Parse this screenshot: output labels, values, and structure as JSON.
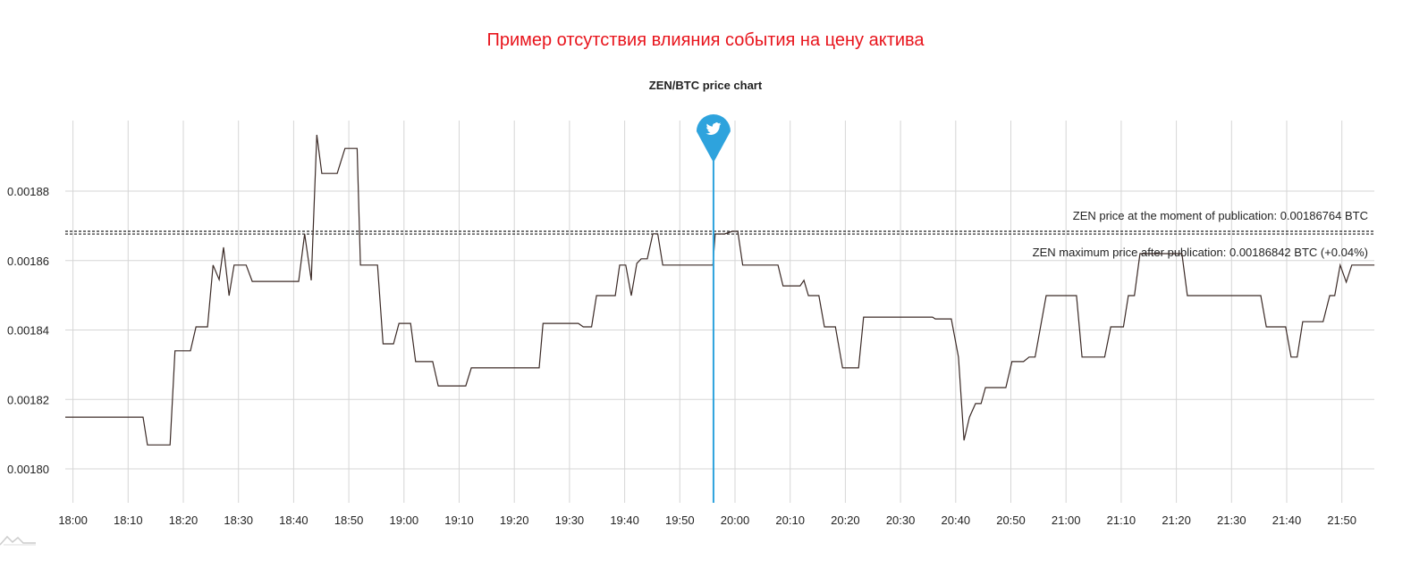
{
  "header": {
    "title": "Пример отсутствия влияния события на цену актива"
  },
  "chart_data": {
    "type": "line",
    "title": "ZEN/BTC price chart",
    "xlabel": "",
    "ylabel": "",
    "x_ticks": [
      "18:00",
      "18:10",
      "18:20",
      "18:30",
      "18:40",
      "18:50",
      "19:00",
      "19:10",
      "19:20",
      "19:30",
      "19:40",
      "19:50",
      "20:00",
      "20:10",
      "20:20",
      "20:30",
      "20:40",
      "20:50",
      "21:00",
      "21:10",
      "21:20",
      "21:30",
      "21:40",
      "21:50"
    ],
    "y_ticks": [
      "0.00180",
      "0.00182",
      "0.00184",
      "0.00186",
      "0.00188"
    ],
    "ylim": [
      0.00179,
      0.0019
    ],
    "grid": true,
    "line_color": "#3b2a26",
    "event": {
      "icon": "twitter-icon",
      "time": "19:56:06",
      "color": "#2ea3dd"
    },
    "reference_lines": [
      {
        "value": 0.00186764,
        "label": "ZEN price at the moment of publication: 0.00186764 BTC"
      },
      {
        "value": 0.00186842,
        "label": "ZEN maximum price after publication: 0.00186842 BTC (+0.04%)"
      }
    ],
    "points": [
      [
        "17:58:36",
        0.0018149
      ],
      [
        "18:12:42",
        0.0018149
      ],
      [
        "18:13:30",
        0.0018069
      ],
      [
        "18:17:36",
        0.0018069
      ],
      [
        "18:18:30",
        0.001834
      ],
      [
        "18:21:18",
        0.001834
      ],
      [
        "18:22:18",
        0.0018409
      ],
      [
        "18:24:24",
        0.0018409
      ],
      [
        "18:25:24",
        0.0018587
      ],
      [
        "18:26:30",
        0.0018545
      ],
      [
        "18:27:18",
        0.0018638
      ],
      [
        "18:28:18",
        0.0018499
      ],
      [
        "18:29:12",
        0.0018587
      ],
      [
        "18:31:24",
        0.0018587
      ],
      [
        "18:32:30",
        0.001854
      ],
      [
        "18:40:54",
        0.001854
      ],
      [
        "18:42:00",
        0.0018677
      ],
      [
        "18:43:12",
        0.0018543
      ],
      [
        "18:44:12",
        0.0018962
      ],
      [
        "18:45:06",
        0.0018851
      ],
      [
        "18:47:54",
        0.0018851
      ],
      [
        "18:49:18",
        0.0018923
      ],
      [
        "18:51:30",
        0.0018923
      ],
      [
        "18:52:06",
        0.0018587
      ],
      [
        "18:55:12",
        0.0018587
      ],
      [
        "18:56:12",
        0.001836
      ],
      [
        "18:58:06",
        0.001836
      ],
      [
        "18:59:06",
        0.0018419
      ],
      [
        "19:01:12",
        0.0018419
      ],
      [
        "19:02:06",
        0.0018309
      ],
      [
        "19:05:12",
        0.0018309
      ],
      [
        "19:06:12",
        0.0018239
      ],
      [
        "19:11:12",
        0.0018239
      ],
      [
        "19:12:12",
        0.0018291
      ],
      [
        "19:24:30",
        0.0018291
      ],
      [
        "19:25:12",
        0.0018419
      ],
      [
        "19:31:36",
        0.0018419
      ],
      [
        "19:32:30",
        0.0018409
      ],
      [
        "19:34:00",
        0.0018409
      ],
      [
        "19:34:54",
        0.0018499
      ],
      [
        "19:38:18",
        0.0018499
      ],
      [
        "19:39:06",
        0.0018587
      ],
      [
        "19:40:12",
        0.0018587
      ],
      [
        "19:41:12",
        0.0018499
      ],
      [
        "19:42:12",
        0.0018592
      ],
      [
        "19:43:00",
        0.0018605
      ],
      [
        "19:44:06",
        0.0018605
      ],
      [
        "19:45:06",
        0.0018677
      ],
      [
        "19:46:00",
        0.0018677
      ],
      [
        "19:46:54",
        0.0018587
      ],
      [
        "19:56:00",
        0.0018587
      ],
      [
        "19:56:24",
        0.00186764
      ],
      [
        "19:58:06",
        0.00186764
      ],
      [
        "19:59:30",
        0.00186842
      ],
      [
        "20:00:30",
        0.00186842
      ],
      [
        "20:01:24",
        0.0018587
      ],
      [
        "20:07:48",
        0.0018587
      ],
      [
        "20:08:42",
        0.0018527
      ],
      [
        "20:11:48",
        0.0018527
      ],
      [
        "20:12:30",
        0.0018543
      ],
      [
        "20:13:18",
        0.0018499
      ],
      [
        "20:15:12",
        0.0018499
      ],
      [
        "20:16:12",
        0.0018409
      ],
      [
        "20:18:12",
        0.0018409
      ],
      [
        "20:19:30",
        0.0018291
      ],
      [
        "20:22:24",
        0.0018291
      ],
      [
        "20:23:18",
        0.0018437
      ],
      [
        "20:35:48",
        0.0018437
      ],
      [
        "20:36:18",
        0.0018432
      ],
      [
        "20:39:12",
        0.0018432
      ],
      [
        "20:40:30",
        0.0018322
      ],
      [
        "20:41:30",
        0.0018082
      ],
      [
        "20:42:30",
        0.0018149
      ],
      [
        "20:43:36",
        0.0018188
      ],
      [
        "20:44:36",
        0.0018188
      ],
      [
        "20:45:24",
        0.0018234
      ],
      [
        "20:49:06",
        0.0018234
      ],
      [
        "20:50:12",
        0.0018309
      ],
      [
        "20:52:18",
        0.0018309
      ],
      [
        "20:53:18",
        0.0018322
      ],
      [
        "20:54:24",
        0.0018322
      ],
      [
        "20:56:24",
        0.0018499
      ],
      [
        "21:01:54",
        0.0018499
      ],
      [
        "21:02:54",
        0.0018322
      ],
      [
        "21:07:00",
        0.0018322
      ],
      [
        "21:08:06",
        0.0018409
      ],
      [
        "21:10:24",
        0.0018409
      ],
      [
        "21:11:18",
        0.0018499
      ],
      [
        "21:12:24",
        0.0018499
      ],
      [
        "21:13:24",
        0.001862
      ],
      [
        "21:21:00",
        0.001862
      ],
      [
        "21:22:00",
        0.0018499
      ],
      [
        "21:35:18",
        0.0018499
      ],
      [
        "21:36:18",
        0.0018409
      ],
      [
        "21:39:48",
        0.0018409
      ],
      [
        "21:40:48",
        0.0018322
      ],
      [
        "21:41:54",
        0.0018322
      ],
      [
        "21:42:54",
        0.0018424
      ],
      [
        "21:46:36",
        0.0018424
      ],
      [
        "21:47:48",
        0.0018499
      ],
      [
        "21:48:42",
        0.0018499
      ],
      [
        "21:49:42",
        0.0018587
      ],
      [
        "21:50:48",
        0.0018538
      ],
      [
        "21:51:48",
        0.0018587
      ],
      [
        "21:55:54",
        0.0018587
      ]
    ]
  },
  "footer": {
    "logo_icon": "mountain-logo-icon"
  }
}
